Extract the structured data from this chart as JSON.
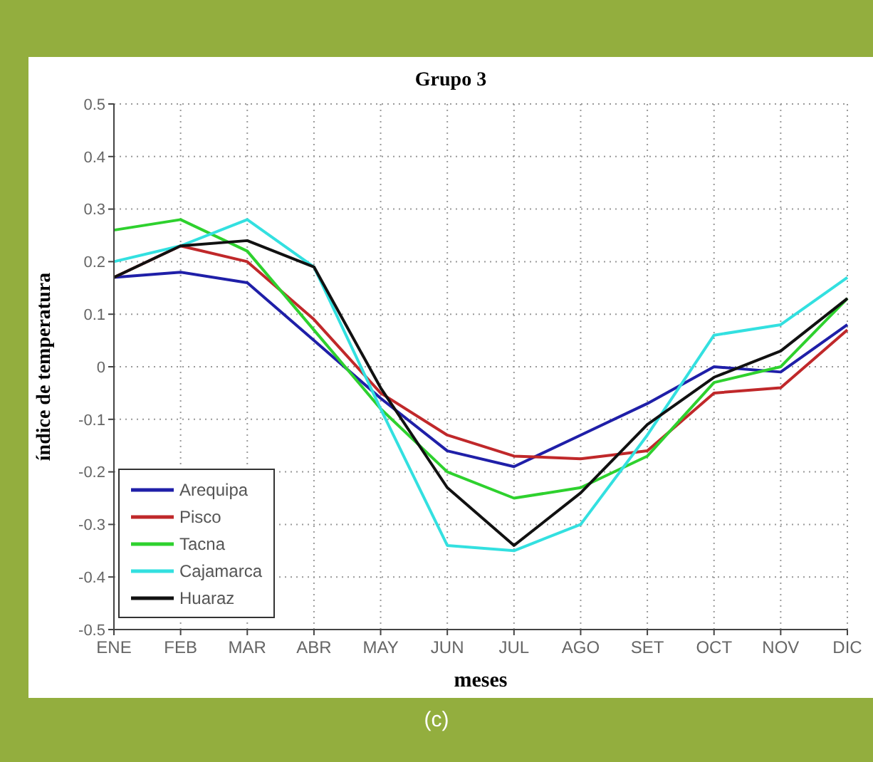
{
  "chart_data": {
    "type": "line",
    "title": "Grupo 3",
    "xlabel": "meses",
    "ylabel": "índice de temperatura",
    "annotations": [
      "(c)"
    ],
    "categories": [
      "ENE",
      "FEB",
      "MAR",
      "ABR",
      "MAY",
      "JUN",
      "JUL",
      "AGO",
      "SET",
      "OCT",
      "NOV",
      "DIC"
    ],
    "series": [
      {
        "name": "Arequipa",
        "color": "#1f1fa8",
        "values": [
          0.17,
          0.18,
          0.16,
          0.05,
          -0.06,
          -0.16,
          -0.19,
          -0.13,
          -0.07,
          0.0,
          -0.01,
          0.08
        ]
      },
      {
        "name": "Pisco",
        "color": "#c0282a",
        "values": [
          0.17,
          0.23,
          0.2,
          0.09,
          -0.05,
          -0.13,
          -0.17,
          -0.175,
          -0.16,
          -0.05,
          -0.04,
          0.07
        ]
      },
      {
        "name": "Tacna",
        "color": "#2ed12e",
        "values": [
          0.26,
          0.28,
          0.22,
          0.07,
          -0.08,
          -0.2,
          -0.25,
          -0.23,
          -0.17,
          -0.03,
          0.0,
          0.13
        ]
      },
      {
        "name": "Cajamarca",
        "color": "#33e0e0",
        "values": [
          0.2,
          0.23,
          0.28,
          0.19,
          -0.08,
          -0.34,
          -0.35,
          -0.3,
          -0.13,
          0.06,
          0.08,
          0.17
        ]
      },
      {
        "name": "Huaraz",
        "color": "#111111",
        "values": [
          0.17,
          0.23,
          0.24,
          0.19,
          -0.04,
          -0.23,
          -0.34,
          -0.24,
          -0.11,
          -0.02,
          0.03,
          0.13
        ]
      }
    ],
    "ylim": [
      -0.5,
      0.5
    ],
    "yticks": [
      -0.5,
      -0.4,
      -0.3,
      -0.2,
      -0.1,
      0,
      0.1,
      0.2,
      0.3,
      0.4,
      0.5
    ],
    "grid": true,
    "legend": "bottom left",
    "marker": "none",
    "line_style": "solid"
  }
}
